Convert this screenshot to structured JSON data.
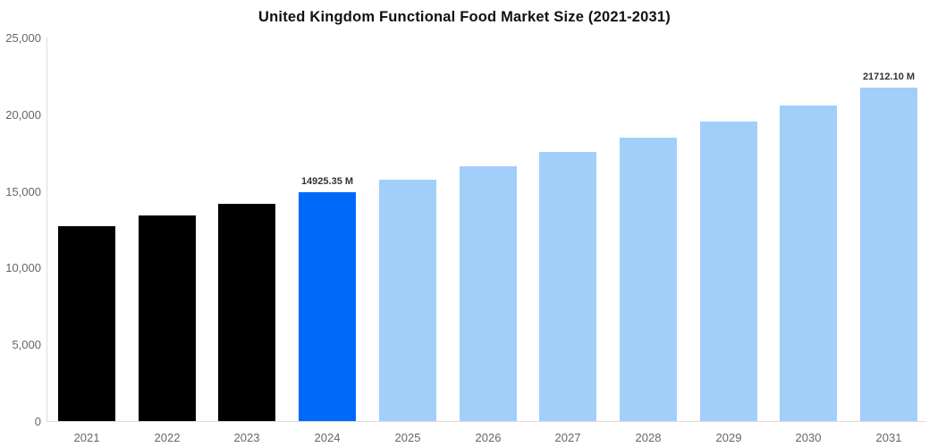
{
  "chart_data": {
    "type": "bar",
    "title": "United Kingdom Functional Food Market Size (2021-2031)",
    "value_unit": "M",
    "categories": [
      "2021",
      "2022",
      "2023",
      "2024",
      "2025",
      "2026",
      "2027",
      "2028",
      "2029",
      "2030",
      "2031"
    ],
    "values": [
      12710.63,
      13409.72,
      14147.25,
      14925.35,
      15746.24,
      16612.28,
      17525.96,
      18489.89,
      19506.83,
      20579.71,
      21712.1
    ],
    "bar_roles": [
      "historical",
      "historical",
      "historical",
      "highlight",
      "forecast",
      "forecast",
      "forecast",
      "forecast",
      "forecast",
      "forecast",
      "forecast"
    ],
    "data_labels": {
      "2024": "14925.35 M",
      "2031": "21712.10 M"
    },
    "xlabel": "",
    "ylabel": "",
    "ylim": [
      0,
      25000
    ],
    "ytick_values": [
      0,
      5000,
      10000,
      15000,
      20000,
      25000
    ],
    "ytick_labels": [
      "0",
      "5,000",
      "10,000",
      "15,000",
      "20,000",
      "25,000"
    ],
    "grid": false,
    "legend": false,
    "colors": {
      "historical": "#000000",
      "highlight": "#0069FA",
      "forecast": "#A2CEFA",
      "axis_line": "#dddddd",
      "tick_label": "#666666",
      "data_label": "#333333",
      "title": "#111111",
      "background": "#ffffff"
    }
  }
}
